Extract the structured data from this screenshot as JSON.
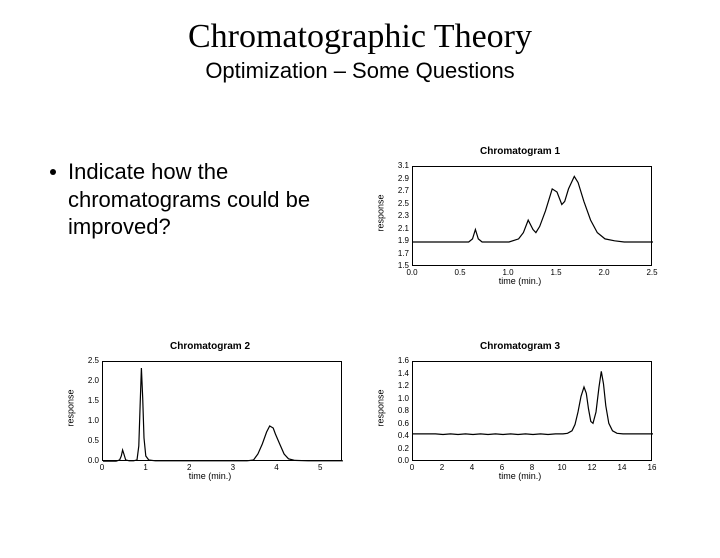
{
  "title": {
    "text": "Chromatographic Theory",
    "fontsize": 34
  },
  "subtitle": {
    "text": "Optimization – Some Questions",
    "fontsize": 22
  },
  "bullet": {
    "text": "Indicate how the chromatograms could be improved?",
    "fontsize": 22
  },
  "charts": {
    "c1": {
      "title": "Chromatogram 1",
      "xlabel": "time (min.)",
      "ylabel": "response",
      "title_fontsize": 10,
      "axis_label_fontsize": 9,
      "tick_fontsize": 8,
      "line_color": "#000000",
      "xlim": [
        0,
        2.5
      ],
      "ylim": [
        1.5,
        3.1
      ],
      "xticks": [
        0,
        0.5,
        1.0,
        1.5,
        2.0,
        2.5
      ],
      "yticks": [
        1.5,
        1.7,
        1.9,
        2.1,
        2.3,
        2.5,
        2.7,
        2.9,
        3.1
      ],
      "series": [
        [
          0.0,
          1.9
        ],
        [
          0.05,
          1.9
        ],
        [
          0.1,
          1.9
        ],
        [
          0.15,
          1.9
        ],
        [
          0.2,
          1.9
        ],
        [
          0.3,
          1.9
        ],
        [
          0.4,
          1.9
        ],
        [
          0.5,
          1.9
        ],
        [
          0.58,
          1.9
        ],
        [
          0.62,
          1.95
        ],
        [
          0.65,
          2.1
        ],
        [
          0.68,
          1.95
        ],
        [
          0.72,
          1.9
        ],
        [
          0.8,
          1.9
        ],
        [
          0.9,
          1.9
        ],
        [
          1.0,
          1.9
        ],
        [
          1.1,
          1.95
        ],
        [
          1.15,
          2.05
        ],
        [
          1.2,
          2.25
        ],
        [
          1.25,
          2.1
        ],
        [
          1.28,
          2.05
        ],
        [
          1.32,
          2.15
        ],
        [
          1.38,
          2.4
        ],
        [
          1.45,
          2.75
        ],
        [
          1.5,
          2.7
        ],
        [
          1.55,
          2.5
        ],
        [
          1.58,
          2.55
        ],
        [
          1.62,
          2.75
        ],
        [
          1.68,
          2.95
        ],
        [
          1.72,
          2.85
        ],
        [
          1.78,
          2.55
        ],
        [
          1.85,
          2.25
        ],
        [
          1.92,
          2.05
        ],
        [
          2.0,
          1.95
        ],
        [
          2.1,
          1.92
        ],
        [
          2.2,
          1.9
        ],
        [
          2.3,
          1.9
        ],
        [
          2.4,
          1.9
        ],
        [
          2.5,
          1.9
        ]
      ]
    },
    "c2": {
      "title": "Chromatogram 2",
      "xlabel": "time (min.)",
      "ylabel": "response",
      "title_fontsize": 10,
      "axis_label_fontsize": 9,
      "tick_fontsize": 8,
      "line_color": "#000000",
      "xlim": [
        0,
        5.5
      ],
      "ylim": [
        0.0,
        2.5
      ],
      "xticks": [
        0.0,
        1.0,
        2.0,
        3.0,
        4.0,
        5.0
      ],
      "yticks": [
        0.0,
        0.5,
        1.0,
        1.5,
        2.0,
        2.5
      ],
      "series": [
        [
          0.0,
          0.02
        ],
        [
          0.1,
          0.02
        ],
        [
          0.2,
          0.02
        ],
        [
          0.3,
          0.02
        ],
        [
          0.38,
          0.05
        ],
        [
          0.42,
          0.15
        ],
        [
          0.45,
          0.3
        ],
        [
          0.48,
          0.2
        ],
        [
          0.52,
          0.05
        ],
        [
          0.6,
          0.03
        ],
        [
          0.7,
          0.03
        ],
        [
          0.78,
          0.05
        ],
        [
          0.82,
          0.4
        ],
        [
          0.85,
          1.4
        ],
        [
          0.88,
          2.35
        ],
        [
          0.91,
          1.6
        ],
        [
          0.94,
          0.6
        ],
        [
          0.98,
          0.15
        ],
        [
          1.05,
          0.05
        ],
        [
          1.2,
          0.03
        ],
        [
          1.5,
          0.03
        ],
        [
          2.0,
          0.03
        ],
        [
          2.5,
          0.03
        ],
        [
          3.0,
          0.03
        ],
        [
          3.3,
          0.03
        ],
        [
          3.45,
          0.05
        ],
        [
          3.55,
          0.2
        ],
        [
          3.65,
          0.45
        ],
        [
          3.75,
          0.75
        ],
        [
          3.82,
          0.9
        ],
        [
          3.9,
          0.85
        ],
        [
          3.95,
          0.7
        ],
        [
          4.05,
          0.45
        ],
        [
          4.15,
          0.2
        ],
        [
          4.25,
          0.08
        ],
        [
          4.4,
          0.04
        ],
        [
          4.7,
          0.03
        ],
        [
          5.0,
          0.03
        ],
        [
          5.3,
          0.03
        ],
        [
          5.5,
          0.03
        ]
      ]
    },
    "c3": {
      "title": "Chromatogram 3",
      "xlabel": "time (min.)",
      "ylabel": "response",
      "title_fontsize": 10,
      "axis_label_fontsize": 9,
      "tick_fontsize": 8,
      "line_color": "#000000",
      "xlim": [
        0,
        16
      ],
      "ylim": [
        0.0,
        1.6
      ],
      "xticks": [
        0,
        2,
        4,
        6,
        8,
        10,
        12,
        14,
        16
      ],
      "yticks": [
        0.0,
        0.2,
        0.4,
        0.6,
        0.8,
        1.0,
        1.2,
        1.4,
        1.6
      ],
      "series": [
        [
          0.0,
          0.45
        ],
        [
          0.3,
          0.45
        ],
        [
          0.6,
          0.45
        ],
        [
          1.0,
          0.45
        ],
        [
          1.5,
          0.45
        ],
        [
          2.0,
          0.44
        ],
        [
          2.5,
          0.45
        ],
        [
          3.0,
          0.44
        ],
        [
          3.5,
          0.45
        ],
        [
          4.0,
          0.44
        ],
        [
          4.5,
          0.45
        ],
        [
          5.0,
          0.44
        ],
        [
          5.5,
          0.45
        ],
        [
          6.0,
          0.44
        ],
        [
          6.5,
          0.45
        ],
        [
          7.0,
          0.44
        ],
        [
          7.5,
          0.45
        ],
        [
          8.0,
          0.44
        ],
        [
          8.5,
          0.45
        ],
        [
          9.0,
          0.44
        ],
        [
          9.5,
          0.45
        ],
        [
          10.0,
          0.45
        ],
        [
          10.3,
          0.46
        ],
        [
          10.6,
          0.5
        ],
        [
          10.8,
          0.6
        ],
        [
          11.0,
          0.8
        ],
        [
          11.2,
          1.05
        ],
        [
          11.4,
          1.2
        ],
        [
          11.55,
          1.1
        ],
        [
          11.7,
          0.85
        ],
        [
          11.85,
          0.65
        ],
        [
          12.0,
          0.62
        ],
        [
          12.2,
          0.8
        ],
        [
          12.4,
          1.2
        ],
        [
          12.55,
          1.45
        ],
        [
          12.7,
          1.25
        ],
        [
          12.85,
          0.9
        ],
        [
          13.05,
          0.62
        ],
        [
          13.3,
          0.5
        ],
        [
          13.6,
          0.46
        ],
        [
          14.0,
          0.45
        ],
        [
          14.5,
          0.45
        ],
        [
          15.0,
          0.45
        ],
        [
          15.5,
          0.45
        ],
        [
          16.0,
          0.45
        ]
      ]
    }
  }
}
